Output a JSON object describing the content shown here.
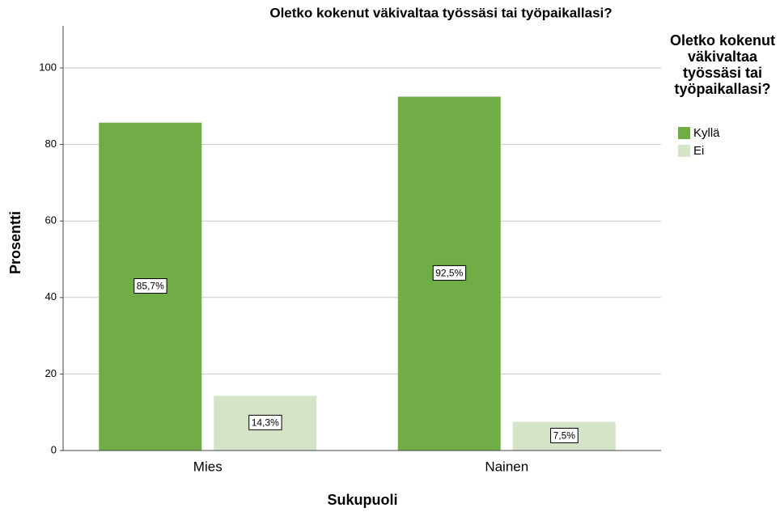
{
  "chart_data": {
    "type": "bar",
    "title": "Oletko kokenut väkivaltaa työssäsi tai työpaikallasi?",
    "x_label": "Sukupuoli",
    "y_label": "Prosentti",
    "legend_title": "Oletko kokenut väkivaltaa työssäsi tai työpaikallasi?",
    "categories": [
      "Mies",
      "Nainen"
    ],
    "series": [
      {
        "name": "Kyllä",
        "color": "#70ad47",
        "values": [
          85.7,
          92.5
        ],
        "value_labels": [
          "85,7%",
          "92,5%"
        ]
      },
      {
        "name": "Ei",
        "color": "#d5e3c9",
        "values": [
          14.3,
          7.5
        ],
        "value_labels": [
          "14,3%",
          "7,5%"
        ]
      }
    ],
    "ylim": [
      0,
      111
    ],
    "yticks": [
      0,
      20,
      40,
      60,
      80,
      100
    ],
    "grid": true,
    "legend": "right"
  }
}
